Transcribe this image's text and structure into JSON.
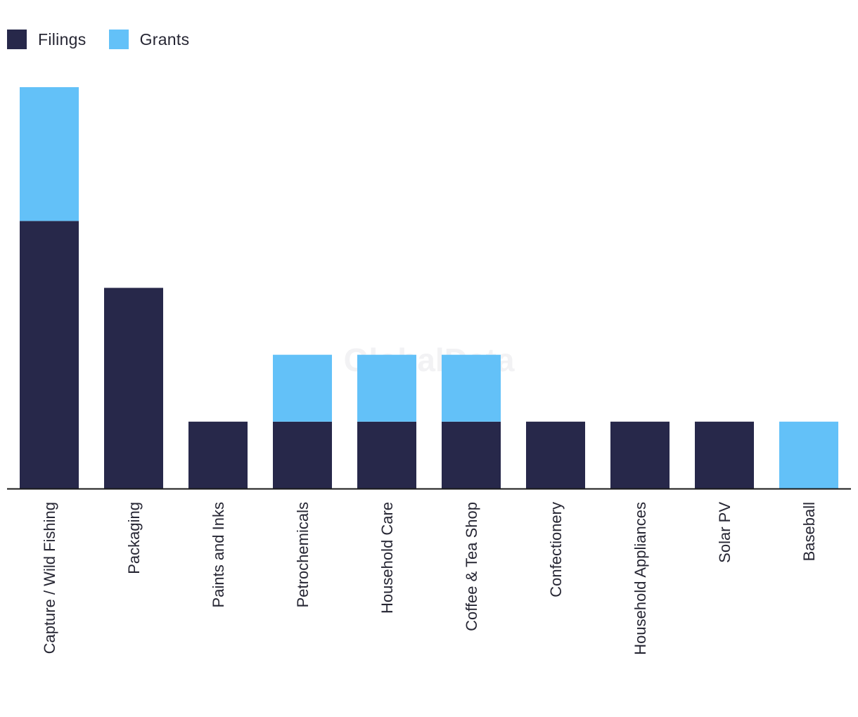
{
  "legend": {
    "filings_label": "Filings",
    "grants_label": "Grants"
  },
  "watermark": "GlobalData",
  "colors": {
    "filings": "#27284a",
    "grants": "#63c1f8",
    "axis": "#1a1a1a"
  },
  "chart_data": {
    "type": "bar",
    "stacked": true,
    "categories": [
      "Capture / Wild Fishing",
      "Packaging",
      "Paints and Inks",
      "Petrochemicals",
      "Household Care",
      "Coffee & Tea Shop",
      "Confectionery",
      "Household Appliances",
      "Solar PV",
      "Baseball"
    ],
    "series": [
      {
        "name": "Filings",
        "values": [
          4,
          3,
          1,
          1,
          1,
          1,
          1,
          1,
          1,
          0
        ]
      },
      {
        "name": "Grants",
        "values": [
          2,
          0,
          0,
          1,
          1,
          1,
          0,
          0,
          0,
          1
        ]
      }
    ],
    "ylim": [
      0,
      6
    ],
    "grid": false,
    "legend_position": "top-left",
    "xlabel": "",
    "ylabel": ""
  }
}
